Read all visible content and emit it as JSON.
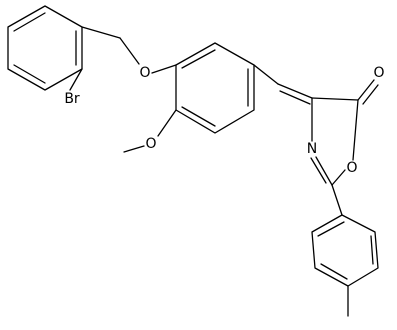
{
  "atoms": [
    {
      "label": "Br"
    },
    {
      "label": "O"
    },
    {
      "label": "O"
    },
    {
      "label": "O"
    },
    {
      "label": "N"
    },
    {
      "label": "O"
    }
  ]
}
